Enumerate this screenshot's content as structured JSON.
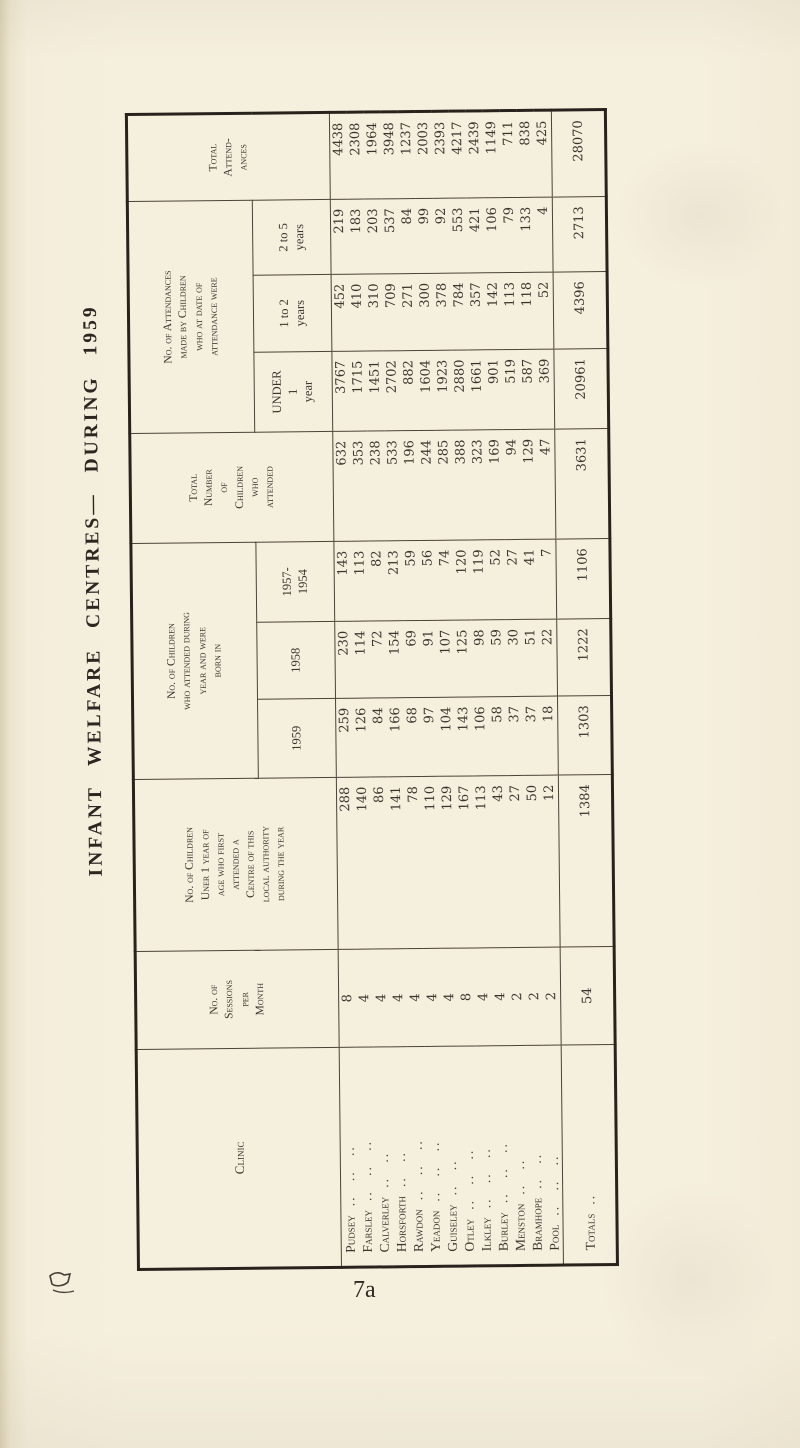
{
  "title": "INFANT WELFARE CENTRES— DURING 1959",
  "page_number": "7a",
  "colors": {
    "paper": "#f4eedd",
    "ink": "#3a342c",
    "rule": "#4a4337",
    "outer_border": "#27221b"
  },
  "table": {
    "headers": {
      "clinic": "Clinic",
      "sessions": "No. of\nSessions\nper\nMonth",
      "first_attended": "No. of Children\nUner 1 year of\nage who first\nattended a\nCentre of this\nlocal authority\nduring the year",
      "born_group": "No. of Children\nwho attended during\nyear and were\nborn in",
      "born_1959": "1959",
      "born_1958": "1958",
      "born_1957_1954": "1957-\n1954",
      "total_children": "Total\nNumber\nof\nChildren\nwho\nattended",
      "attendance_group": "No. of Attendances\nmade by Children\nwho at date of\nattendance were",
      "under_1_year": "UNDER\n1\nyear",
      "one_to_two_years": "1 to 2\nyears",
      "two_to_five_years": "2 to 5\nyears",
      "total_attendances": "Total\nAttend-\nances"
    },
    "value_columns": [
      "sessions_per_month",
      "children_under_1_first_attended",
      "born_1959",
      "born_1958",
      "born_1957_1954",
      "total_children_attended",
      "attendances_under_1_year",
      "attendances_1_to_2_years",
      "attendances_2_to_5_years",
      "total_attendances"
    ],
    "rows": [
      {
        "clinic": "Pudsey",
        "leader": ".. .. ..",
        "values": [
          8,
          288,
          259,
          230,
          143,
          632,
          3767,
          452,
          219,
          4438
        ]
      },
      {
        "clinic": "Farsley",
        "leader": ".. .. ..",
        "values": [
          4,
          140,
          126,
          114,
          113,
          353,
          1715,
          410,
          183,
          2308
        ]
      },
      {
        "clinic": "Calverley",
        "leader": ".. ..",
        "values": [
          4,
          86,
          84,
          72,
          82,
          238,
          1451,
          310,
          203,
          1964
        ]
      },
      {
        "clinic": "Horsforth",
        "leader": ".. ..",
        "values": [
          4,
          141,
          166,
          154,
          213,
          533,
          2702,
          709,
          537,
          3948
        ]
      },
      {
        "clinic": "Rawdon",
        "leader": ".. .. ..",
        "values": [
          4,
          78,
          68,
          69,
          59,
          196,
          882,
          271,
          84,
          1237
        ]
      },
      {
        "clinic": "Yeadon",
        "leader": ".. .. ..",
        "values": [
          4,
          110,
          97,
          91,
          56,
          244,
          1604,
          300,
          99,
          2003
        ]
      },
      {
        "clinic": "Guiseley",
        "leader": ".. ..",
        "values": [
          4,
          129,
          104,
          107,
          74,
          285,
          1923,
          378,
          92,
          2393
        ]
      },
      {
        "clinic": "Otley",
        "leader": ".. .. ..",
        "values": [
          8,
          167,
          143,
          125,
          120,
          388,
          2880,
          784,
          553,
          4217
        ]
      },
      {
        "clinic": "Ilkley",
        "leader": ".. .. ..",
        "values": [
          4,
          113,
          106,
          98,
          119,
          323,
          1661,
          357,
          421,
          2439
        ]
      },
      {
        "clinic": "Burley",
        "leader": ".. .. ..",
        "values": [
          4,
          43,
          58,
          59,
          52,
          169,
          901,
          142,
          106,
          1149
        ]
      },
      {
        "clinic": "Menston",
        "leader": ".. ..",
        "values": [
          2,
          27,
          37,
          30,
          27,
          94,
          519,
          113,
          79,
          711
        ]
      },
      {
        "clinic": "Bramhope",
        "leader": ".. ..",
        "values": [
          2,
          50,
          37,
          51,
          41,
          129,
          587,
          118,
          133,
          838
        ]
      },
      {
        "clinic": "Pool",
        "leader": ".. .. ..",
        "values": [
          2,
          12,
          18,
          22,
          7,
          47,
          369,
          52,
          4,
          425
        ]
      }
    ],
    "totals_row": {
      "clinic": "Totals",
      "leader": "..",
      "values": [
        54,
        1384,
        1303,
        1222,
        1106,
        3631,
        20961,
        4396,
        2713,
        28070
      ]
    }
  }
}
